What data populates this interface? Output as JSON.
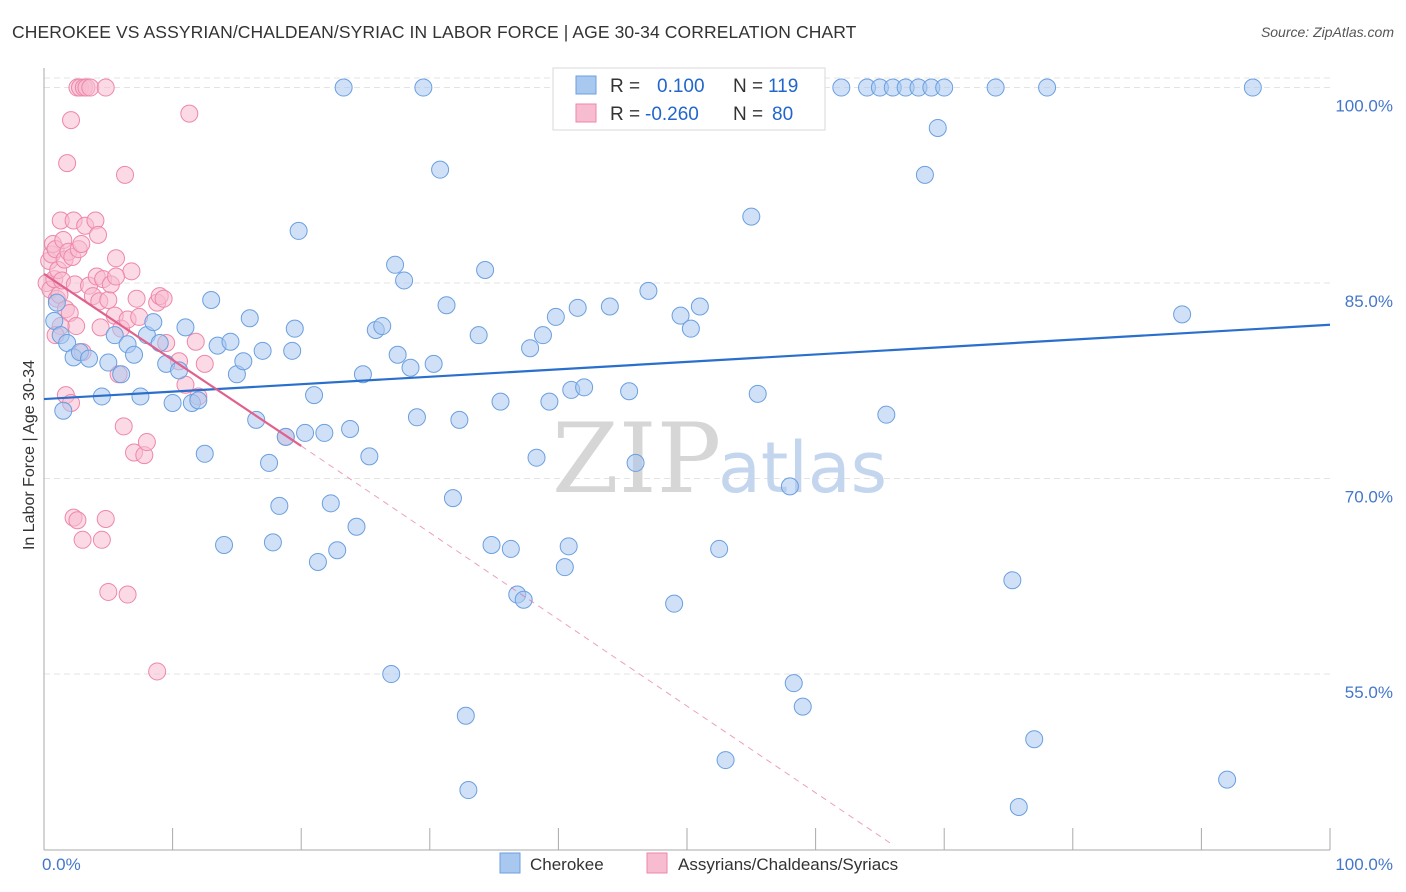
{
  "title": "CHEROKEE VS ASSYRIAN/CHALDEAN/SYRIAC IN LABOR FORCE | AGE 30-34 CORRELATION CHART",
  "source": "Source: ZipAtlas.com",
  "watermark": {
    "zip": "ZIP",
    "atlas": "atlas"
  },
  "colors": {
    "cherokee_fill": "#a9c8f0",
    "cherokee_stroke": "#6a9fe0",
    "cherokee_line": "#2a6fcc",
    "assyrian_fill": "#f7bcd0",
    "assyrian_stroke": "#ee87aa",
    "assyrian_line": "#e0608e",
    "axis_label": "#4477c9",
    "grid": "#e3e3e3"
  },
  "legend": {
    "rows": [
      {
        "r_label": "R =",
        "r_value": "0.100",
        "n_label": "N =",
        "n_value": "119"
      },
      {
        "r_label": "R =",
        "r_value": "-0.260",
        "n_label": "N =",
        "n_value": "80"
      }
    ]
  },
  "bottom_legend": [
    "Cherokee",
    "Assyrians/Chaldeans/Syriacs"
  ],
  "chart_data": {
    "type": "scatter",
    "ylabel": "In Labor Force | Age 30-34",
    "xlabel": "",
    "x_tick_labels": [
      "0.0%",
      "100.0%"
    ],
    "y_tick_labels": [
      "100.0%",
      "85.0%",
      "70.0%",
      "55.0%"
    ],
    "y_ticks": [
      100,
      85,
      70,
      55
    ],
    "xlim": [
      0,
      100
    ],
    "ylim": [
      41.5,
      101.5
    ],
    "grid": true,
    "series": [
      {
        "name": "Cherokee",
        "trend": {
          "x0": 0,
          "y0": 76.1,
          "x1": 100,
          "y1": 81.8
        },
        "points": [
          [
            0.8,
            82.1
          ],
          [
            1.3,
            81.0
          ],
          [
            1.8,
            80.4
          ],
          [
            2.3,
            79.3
          ],
          [
            2.8,
            79.7
          ],
          [
            1.0,
            83.5
          ],
          [
            3.5,
            79.2
          ],
          [
            1.5,
            75.2
          ],
          [
            4.5,
            76.3
          ],
          [
            5.0,
            78.9
          ],
          [
            5.5,
            81.0
          ],
          [
            6.0,
            78.0
          ],
          [
            6.5,
            80.3
          ],
          [
            7.0,
            79.5
          ],
          [
            7.5,
            76.3
          ],
          [
            8.0,
            81.0
          ],
          [
            8.5,
            82.0
          ],
          [
            9.0,
            80.4
          ],
          [
            9.5,
            78.8
          ],
          [
            10.0,
            75.8
          ],
          [
            10.5,
            78.3
          ],
          [
            11.0,
            81.6
          ],
          [
            11.5,
            75.8
          ],
          [
            12.0,
            76.0
          ],
          [
            12.5,
            71.9
          ],
          [
            13.0,
            83.7
          ],
          [
            13.5,
            80.2
          ],
          [
            14.0,
            64.9
          ],
          [
            14.5,
            80.5
          ],
          [
            15.0,
            78.0
          ],
          [
            15.5,
            79.0
          ],
          [
            16.0,
            82.3
          ],
          [
            16.5,
            74.5
          ],
          [
            17.0,
            79.8
          ],
          [
            17.5,
            71.2
          ],
          [
            17.8,
            65.1
          ],
          [
            18.3,
            67.9
          ],
          [
            18.8,
            73.2
          ],
          [
            19.3,
            79.8
          ],
          [
            19.5,
            81.5
          ],
          [
            19.8,
            89.0
          ],
          [
            20.3,
            73.5
          ],
          [
            21.0,
            76.4
          ],
          [
            21.3,
            63.6
          ],
          [
            21.8,
            73.5
          ],
          [
            22.3,
            68.1
          ],
          [
            22.8,
            64.5
          ],
          [
            23.3,
            100.0
          ],
          [
            23.8,
            73.8
          ],
          [
            24.3,
            66.3
          ],
          [
            24.8,
            78.0
          ],
          [
            25.3,
            71.7
          ],
          [
            25.8,
            81.4
          ],
          [
            26.3,
            81.7
          ],
          [
            27.0,
            55.0
          ],
          [
            27.5,
            79.5
          ],
          [
            28.0,
            85.2
          ],
          [
            28.5,
            78.5
          ],
          [
            29.0,
            74.7
          ],
          [
            29.5,
            100.0
          ],
          [
            30.3,
            78.8
          ],
          [
            30.8,
            93.7
          ],
          [
            31.3,
            83.3
          ],
          [
            31.8,
            68.5
          ],
          [
            32.3,
            74.5
          ],
          [
            32.8,
            51.8
          ],
          [
            33.0,
            46.1
          ],
          [
            33.8,
            81.0
          ],
          [
            34.3,
            86.0
          ],
          [
            34.8,
            64.9
          ],
          [
            35.5,
            75.9
          ],
          [
            36.3,
            64.6
          ],
          [
            36.8,
            61.1
          ],
          [
            37.3,
            60.7
          ],
          [
            37.8,
            80.0
          ],
          [
            38.3,
            71.6
          ],
          [
            38.8,
            81.0
          ],
          [
            39.3,
            75.9
          ],
          [
            39.8,
            82.4
          ],
          [
            40.5,
            63.2
          ],
          [
            41.0,
            76.8
          ],
          [
            41.5,
            83.1
          ],
          [
            42.0,
            77.0
          ],
          [
            44.0,
            83.2
          ],
          [
            45.5,
            76.7
          ],
          [
            46.0,
            71.2
          ],
          [
            47.0,
            84.4
          ],
          [
            49.0,
            60.4
          ],
          [
            49.5,
            82.5
          ],
          [
            50.3,
            81.5
          ],
          [
            51.0,
            83.2
          ],
          [
            52.5,
            64.6
          ],
          [
            53.0,
            48.4
          ],
          [
            55.0,
            90.1
          ],
          [
            55.5,
            76.5
          ],
          [
            58.0,
            69.4
          ],
          [
            58.3,
            54.3
          ],
          [
            59.0,
            52.5
          ],
          [
            62.0,
            100.0
          ],
          [
            64.0,
            100.0
          ],
          [
            65.0,
            100.0
          ],
          [
            65.5,
            74.9
          ],
          [
            66.0,
            100.0
          ],
          [
            67.0,
            100.0
          ],
          [
            68.0,
            100.0
          ],
          [
            68.5,
            93.3
          ],
          [
            69.0,
            100.0
          ],
          [
            69.5,
            96.9
          ],
          [
            70.0,
            100.0
          ],
          [
            74.0,
            100.0
          ],
          [
            75.3,
            62.2
          ],
          [
            75.8,
            44.8
          ],
          [
            77.0,
            50.0
          ],
          [
            78.0,
            100.0
          ],
          [
            88.5,
            82.6
          ],
          [
            92.0,
            46.9
          ],
          [
            94.0,
            100.0
          ],
          [
            40.8,
            64.8
          ],
          [
            27.3,
            86.4
          ]
        ]
      },
      {
        "name": "Assyrians/Chaldeans/Syriacs",
        "trend": {
          "x0": 0,
          "y0": 85.7,
          "x1": 20,
          "y1": 72.5
        },
        "trend_extension": {
          "x0": 20,
          "y0": 72.5,
          "x1": 66,
          "y1": 41.9
        },
        "points": [
          [
            0.2,
            85.0
          ],
          [
            0.4,
            86.7
          ],
          [
            0.5,
            84.5
          ],
          [
            0.6,
            87.2
          ],
          [
            0.7,
            88.0
          ],
          [
            0.8,
            85.3
          ],
          [
            0.9,
            87.6
          ],
          [
            1.0,
            83.8
          ],
          [
            1.1,
            86.0
          ],
          [
            1.2,
            84.1
          ],
          [
            1.3,
            89.8
          ],
          [
            1.4,
            85.2
          ],
          [
            1.5,
            88.3
          ],
          [
            1.6,
            86.8
          ],
          [
            1.7,
            83.0
          ],
          [
            1.8,
            94.2
          ],
          [
            1.9,
            87.4
          ],
          [
            2.0,
            82.7
          ],
          [
            2.1,
            97.5
          ],
          [
            2.2,
            87.0
          ],
          [
            2.3,
            89.8
          ],
          [
            2.4,
            84.9
          ],
          [
            2.5,
            81.7
          ],
          [
            2.6,
            100.0
          ],
          [
            2.7,
            87.6
          ],
          [
            2.8,
            100.0
          ],
          [
            2.9,
            88.0
          ],
          [
            3.0,
            79.7
          ],
          [
            3.1,
            100.0
          ],
          [
            3.2,
            89.4
          ],
          [
            3.3,
            100.0
          ],
          [
            3.5,
            84.8
          ],
          [
            3.6,
            100.0
          ],
          [
            3.8,
            84.0
          ],
          [
            4.0,
            89.8
          ],
          [
            4.1,
            85.5
          ],
          [
            4.2,
            88.7
          ],
          [
            4.3,
            83.6
          ],
          [
            4.4,
            81.6
          ],
          [
            4.6,
            85.3
          ],
          [
            4.8,
            100.0
          ],
          [
            5.0,
            83.7
          ],
          [
            5.2,
            84.9
          ],
          [
            5.5,
            82.5
          ],
          [
            5.6,
            86.9
          ],
          [
            5.8,
            78.0
          ],
          [
            6.0,
            81.5
          ],
          [
            6.2,
            74.0
          ],
          [
            6.3,
            93.3
          ],
          [
            6.5,
            82.2
          ],
          [
            6.8,
            85.9
          ],
          [
            7.0,
            72.0
          ],
          [
            7.2,
            83.8
          ],
          [
            7.4,
            82.4
          ],
          [
            7.8,
            71.8
          ],
          [
            8.0,
            72.8
          ],
          [
            8.8,
            83.5
          ],
          [
            9.0,
            84.0
          ],
          [
            9.3,
            83.8
          ],
          [
            10.5,
            79.0
          ],
          [
            11.0,
            77.2
          ],
          [
            11.3,
            98.0
          ],
          [
            11.8,
            80.5
          ],
          [
            12.5,
            78.8
          ],
          [
            5.0,
            61.3
          ],
          [
            6.5,
            61.1
          ],
          [
            8.8,
            55.2
          ],
          [
            4.8,
            66.9
          ],
          [
            2.3,
            67.0
          ],
          [
            2.6,
            66.8
          ],
          [
            3.0,
            65.3
          ],
          [
            1.7,
            76.4
          ],
          [
            2.1,
            75.8
          ],
          [
            1.3,
            81.7
          ],
          [
            0.9,
            81.0
          ],
          [
            18.8,
            73.2
          ],
          [
            12.0,
            76.3
          ],
          [
            9.5,
            80.4
          ],
          [
            5.6,
            85.5
          ],
          [
            4.5,
            65.3
          ]
        ]
      }
    ]
  }
}
